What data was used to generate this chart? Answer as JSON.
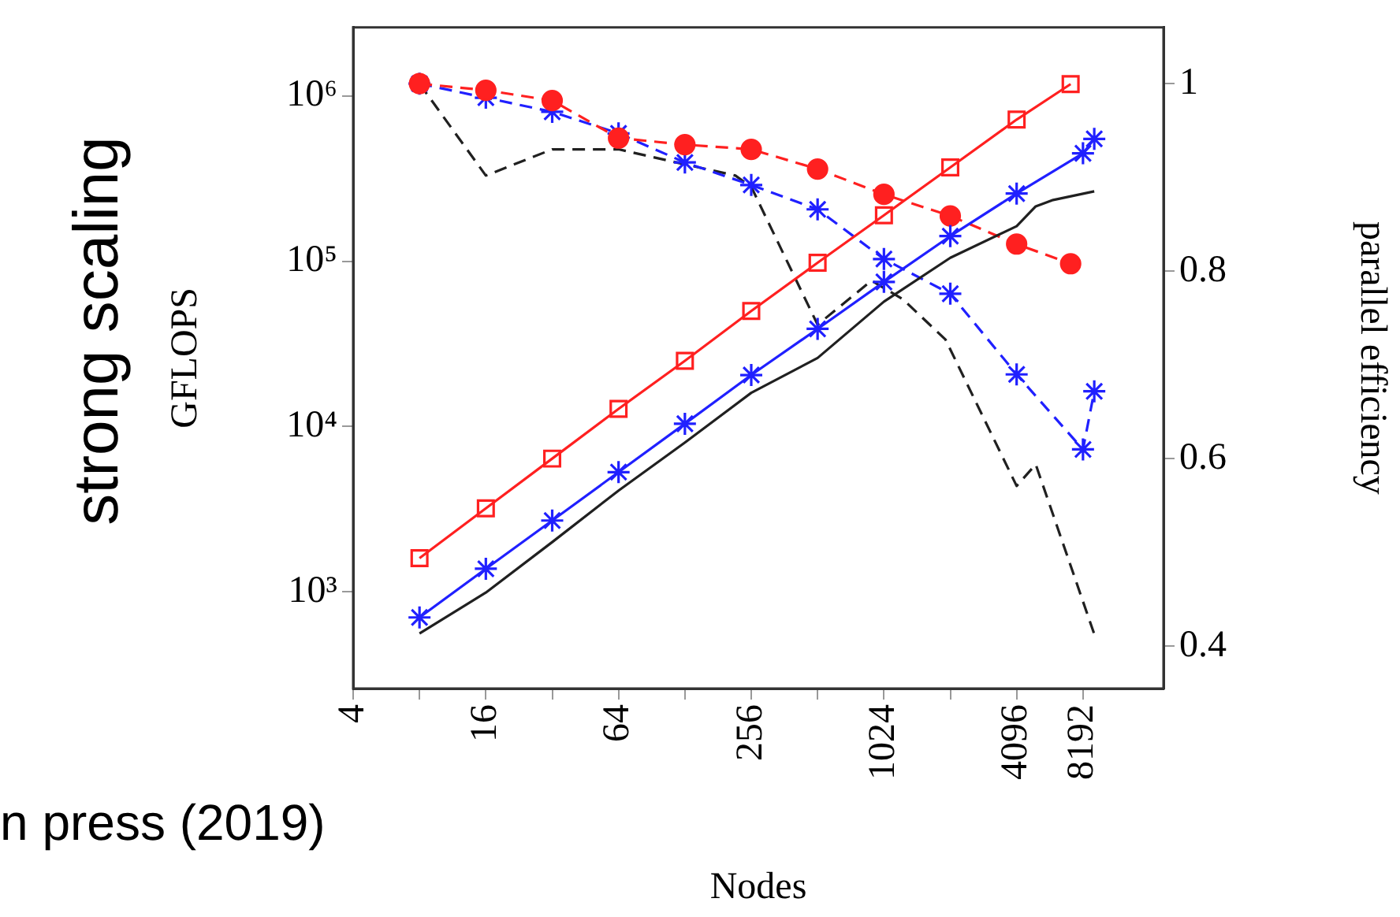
{
  "chart_data": {
    "type": "line",
    "xlabel": "Nodes",
    "ylabel": "GFLOPS",
    "y2label": "parallel efficiency",
    "log": "xy",
    "grid": false,
    "legend": false,
    "xlim": [
      4,
      19000
    ],
    "xticks": [
      4,
      {
        "value": 8,
        "label": null
      },
      16,
      {
        "value": 32,
        "label": null
      },
      64,
      {
        "value": 128,
        "label": null
      },
      256,
      {
        "value": 512,
        "label": null
      },
      1024,
      {
        "value": 2048,
        "label": null
      },
      4096,
      8192
    ],
    "ylim": [
      260,
      2600000
    ],
    "yticks": [
      {
        "value": 1000,
        "label": "10³"
      },
      {
        "value": 10000,
        "label": "10⁴"
      },
      {
        "value": 100000,
        "label": "10⁵"
      },
      {
        "value": 1000000,
        "label": "10⁶"
      }
    ],
    "y2lim": [
      0.355,
      1.06
    ],
    "y2ticks": [
      0.4,
      0.6,
      0.8,
      1
    ],
    "annotations": [
      "strong scaling",
      "n press (2019)"
    ],
    "series": [
      {
        "color": "#ff2020",
        "marker": "square",
        "line_style": "solid",
        "x": [
          8,
          16,
          32,
          64,
          128,
          256,
          512,
          1024,
          2048,
          4096,
          7200
        ],
        "values": [
          1600,
          3200,
          6400,
          12800,
          25000,
          50000,
          98000,
          190000,
          370000,
          720000,
          1180000
        ]
      },
      {
        "color": "#2020ff",
        "marker": "cross",
        "line_style": "solid",
        "x": [
          8,
          16,
          32,
          64,
          128,
          256,
          512,
          1024,
          2048,
          4096,
          8192,
          9216
        ],
        "values": [
          700,
          1380,
          2700,
          5300,
          10400,
          20500,
          39000,
          75000,
          142000,
          257000,
          450000,
          550000
        ]
      },
      {
        "color": "#202020",
        "marker": "none",
        "line_style": "solid",
        "x": [
          8,
          16,
          32,
          64,
          128,
          256,
          512,
          1024,
          2048,
          4096,
          5000,
          6000,
          9216
        ],
        "values": [
          560,
          990,
          2000,
          4100,
          8000,
          16000,
          26000,
          57000,
          105000,
          163000,
          215000,
          235000,
          265000
        ]
      },
      {
        "color": "#ff2020",
        "marker": "circle",
        "line_style": "dashed",
        "axis": "y2",
        "x": [
          8,
          16,
          32,
          64,
          128,
          256,
          512,
          1024,
          2048,
          4096,
          7200
        ],
        "values": [
          1.0,
          0.993,
          0.982,
          0.942,
          0.935,
          0.93,
          0.909,
          0.882,
          0.859,
          0.829,
          0.808
        ]
      },
      {
        "color": "#2020ff",
        "marker": "cross",
        "line_style": "dashed",
        "axis": "y2",
        "x": [
          8,
          16,
          32,
          64,
          128,
          256,
          512,
          1024,
          2048,
          4096,
          8192,
          9216
        ],
        "values": [
          1.0,
          0.985,
          0.97,
          0.947,
          0.916,
          0.892,
          0.866,
          0.813,
          0.776,
          0.69,
          0.61,
          0.672
        ]
      },
      {
        "color": "#202020",
        "marker": "none",
        "line_style": "dashed",
        "axis": "y2",
        "x": [
          8,
          16,
          32,
          64,
          128,
          217,
          256,
          512,
          900,
          1250,
          1950,
          4096,
          5000,
          9216
        ],
        "values": [
          1.0,
          0.902,
          0.93,
          0.93,
          0.914,
          0.902,
          0.89,
          0.743,
          0.79,
          0.77,
          0.727,
          0.571,
          0.594,
          0.413
        ]
      }
    ]
  }
}
